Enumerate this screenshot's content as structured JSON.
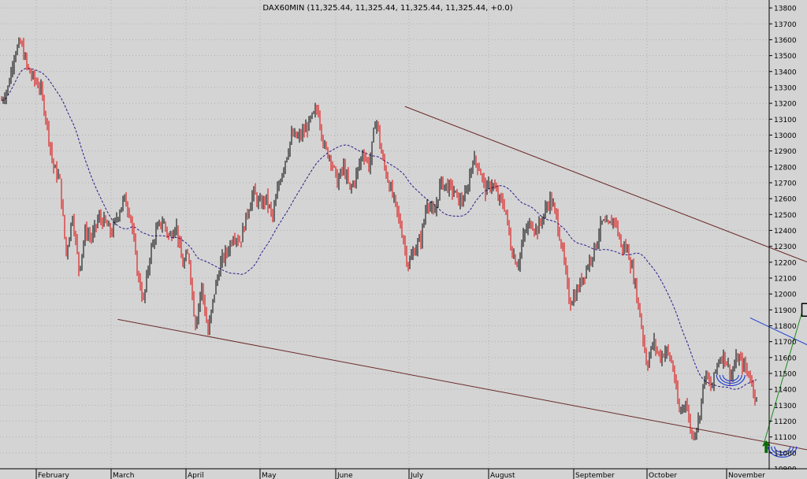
{
  "chart_data": {
    "type": "candlestick",
    "title": "DAX60MIN (11,325.44, 11,325.44, 11,325.44, 11,325.44, +0.0)",
    "xlabel": "",
    "ylabel": "",
    "ylim": [
      10900,
      13850
    ],
    "y_ticks": [
      10900,
      11000,
      11100,
      11200,
      11300,
      11400,
      11500,
      11600,
      11700,
      11800,
      11900,
      12000,
      12100,
      12200,
      12300,
      12400,
      12500,
      12600,
      12700,
      12800,
      12900,
      13000,
      13100,
      13200,
      13300,
      13400,
      13500,
      13600,
      13700,
      13800
    ],
    "x_ticks": [
      "February",
      "March",
      "April",
      "May",
      "June",
      "July",
      "August",
      "September",
      "October",
      "November"
    ],
    "grid": true,
    "colors": {
      "background": "#d4d4d4",
      "grid": "#b0b0b0",
      "up_candle": "#000000",
      "down_candle": "#e00000",
      "moving_average": "#2a1a8a",
      "channel_lines": "#6b2a2a",
      "resistance_line": "#1f3fd0",
      "trend_line": "#1e8a1e",
      "arcs": "#1f3fd0",
      "arrow": "#0b6b0b"
    },
    "price_path": [
      [
        0,
        13220
      ],
      [
        1,
        13300
      ],
      [
        2,
        13520
      ],
      [
        3,
        13580
      ],
      [
        4,
        13420
      ],
      [
        5,
        13350
      ],
      [
        6,
        13300
      ],
      [
        7,
        13080
      ],
      [
        8,
        12800
      ],
      [
        9,
        12720
      ],
      [
        10,
        12250
      ],
      [
        11,
        12500
      ],
      [
        12,
        12150
      ],
      [
        13,
        12400
      ],
      [
        14,
        12350
      ],
      [
        15,
        12480
      ],
      [
        16,
        12450
      ],
      [
        17,
        12380
      ],
      [
        18,
        12500
      ],
      [
        19,
        12600
      ],
      [
        20,
        12500
      ],
      [
        21,
        12150
      ],
      [
        22,
        11950
      ],
      [
        23,
        12250
      ],
      [
        24,
        12400
      ],
      [
        25,
        12460
      ],
      [
        26,
        12350
      ],
      [
        27,
        12450
      ],
      [
        28,
        12180
      ],
      [
        29,
        12250
      ],
      [
        30,
        11800
      ],
      [
        31,
        12050
      ],
      [
        32,
        11750
      ],
      [
        33,
        12020
      ],
      [
        34,
        12200
      ],
      [
        35,
        12270
      ],
      [
        36,
        12380
      ],
      [
        37,
        12330
      ],
      [
        38,
        12500
      ],
      [
        39,
        12640
      ],
      [
        40,
        12560
      ],
      [
        41,
        12600
      ],
      [
        42,
        12480
      ],
      [
        43,
        12700
      ],
      [
        44,
        12850
      ],
      [
        45,
        13000
      ],
      [
        46,
        12980
      ],
      [
        47,
        13030
      ],
      [
        48,
        13100
      ],
      [
        49,
        13170
      ],
      [
        50,
        12920
      ],
      [
        51,
        12860
      ],
      [
        52,
        12700
      ],
      [
        53,
        12800
      ],
      [
        54,
        12650
      ],
      [
        55,
        12750
      ],
      [
        56,
        12900
      ],
      [
        57,
        12800
      ],
      [
        58,
        13120
      ],
      [
        59,
        12850
      ],
      [
        60,
        12700
      ],
      [
        61,
        12560
      ],
      [
        62,
        12400
      ],
      [
        63,
        12180
      ],
      [
        64,
        12280
      ],
      [
        65,
        12350
      ],
      [
        66,
        12600
      ],
      [
        67,
        12480
      ],
      [
        68,
        12700
      ],
      [
        69,
        12680
      ],
      [
        70,
        12650
      ],
      [
        71,
        12580
      ],
      [
        72,
        12620
      ],
      [
        73,
        12850
      ],
      [
        74,
        12800
      ],
      [
        75,
        12650
      ],
      [
        76,
        12700
      ],
      [
        77,
        12600
      ],
      [
        78,
        12550
      ],
      [
        79,
        12280
      ],
      [
        80,
        12180
      ],
      [
        81,
        12380
      ],
      [
        82,
        12450
      ],
      [
        83,
        12400
      ],
      [
        84,
        12500
      ],
      [
        85,
        12600
      ],
      [
        86,
        12480
      ],
      [
        87,
        12250
      ],
      [
        88,
        11950
      ],
      [
        89,
        12000
      ],
      [
        90,
        12100
      ],
      [
        91,
        12200
      ],
      [
        92,
        12300
      ],
      [
        93,
        12450
      ],
      [
        94,
        12420
      ],
      [
        95,
        12480
      ],
      [
        96,
        12300
      ],
      [
        97,
        12280
      ],
      [
        98,
        12100
      ],
      [
        99,
        11850
      ],
      [
        100,
        11550
      ],
      [
        101,
        11700
      ],
      [
        102,
        11600
      ],
      [
        103,
        11650
      ],
      [
        104,
        11550
      ],
      [
        105,
        11250
      ],
      [
        106,
        11330
      ],
      [
        107,
        11100
      ],
      [
        108,
        11200
      ],
      [
        109,
        11500
      ],
      [
        110,
        11400
      ],
      [
        111,
        11580
      ],
      [
        112,
        11620
      ],
      [
        113,
        11480
      ],
      [
        114,
        11600
      ],
      [
        115,
        11550
      ],
      [
        116,
        11480
      ],
      [
        117,
        11330
      ]
    ],
    "ma_period": 14,
    "annotations": {
      "channel_upper": [
        [
          62.5,
          13180
        ],
        [
          130,
          12120
        ]
      ],
      "channel_lower": [
        [
          18,
          11840
        ],
        [
          130,
          10980
        ]
      ],
      "resistance": [
        [
          116,
          11850
        ],
        [
          129,
          11600
        ]
      ],
      "trend_up": [
        [
          118,
          11040
        ],
        [
          124,
          11880
        ]
      ],
      "arcs": [
        [
          113,
          11490
        ],
        [
          121,
          11040
        ],
        [
          128,
          11320
        ]
      ],
      "arrow_at": [
        118.5,
        11000
      ],
      "box": [
        125,
        11900
      ]
    }
  }
}
